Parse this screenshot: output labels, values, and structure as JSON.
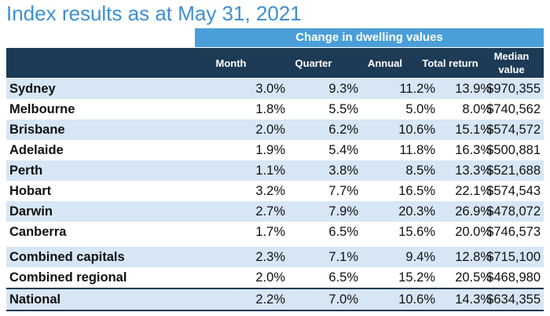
{
  "title": "Index results as at May 31, 2021",
  "group_header": "Change in dwelling values",
  "columns": [
    "Month",
    "Quarter",
    "Annual",
    "Total return",
    "Median value"
  ],
  "median_header": {
    "line1": "Median",
    "line2": "value"
  },
  "rows": [
    {
      "name": "Sydney",
      "month": "3.0%",
      "quarter": "9.3%",
      "annual": "11.2%",
      "total": "13.9%",
      "median": "$970,355"
    },
    {
      "name": "Melbourne",
      "month": "1.8%",
      "quarter": "5.5%",
      "annual": "5.0%",
      "total": "8.0%",
      "median": "$740,562"
    },
    {
      "name": "Brisbane",
      "month": "2.0%",
      "quarter": "6.2%",
      "annual": "10.6%",
      "total": "15.1%",
      "median": "$574,572"
    },
    {
      "name": "Adelaide",
      "month": "1.9%",
      "quarter": "5.4%",
      "annual": "11.8%",
      "total": "16.3%",
      "median": "$500,881"
    },
    {
      "name": "Perth",
      "month": "1.1%",
      "quarter": "3.8%",
      "annual": "8.5%",
      "total": "13.3%",
      "median": "$521,688"
    },
    {
      "name": "Hobart",
      "month": "3.2%",
      "quarter": "7.7%",
      "annual": "16.5%",
      "total": "22.1%",
      "median": "$574,543"
    },
    {
      "name": "Darwin",
      "month": "2.7%",
      "quarter": "7.9%",
      "annual": "20.3%",
      "total": "26.9%",
      "median": "$478,072"
    },
    {
      "name": "Canberra",
      "month": "1.7%",
      "quarter": "6.5%",
      "annual": "15.6%",
      "total": "20.0%",
      "median": "$746,573"
    },
    {
      "name": "Combined capitals",
      "month": "2.3%",
      "quarter": "7.1%",
      "annual": "9.4%",
      "total": "12.8%",
      "median": "$715,100"
    },
    {
      "name": "Combined regional",
      "month": "2.0%",
      "quarter": "6.5%",
      "annual": "15.2%",
      "total": "20.5%",
      "median": "$468,980"
    },
    {
      "name": "National",
      "month": "2.2%",
      "quarter": "7.0%",
      "annual": "10.6%",
      "total": "14.3%",
      "median": "$634,355"
    }
  ]
}
